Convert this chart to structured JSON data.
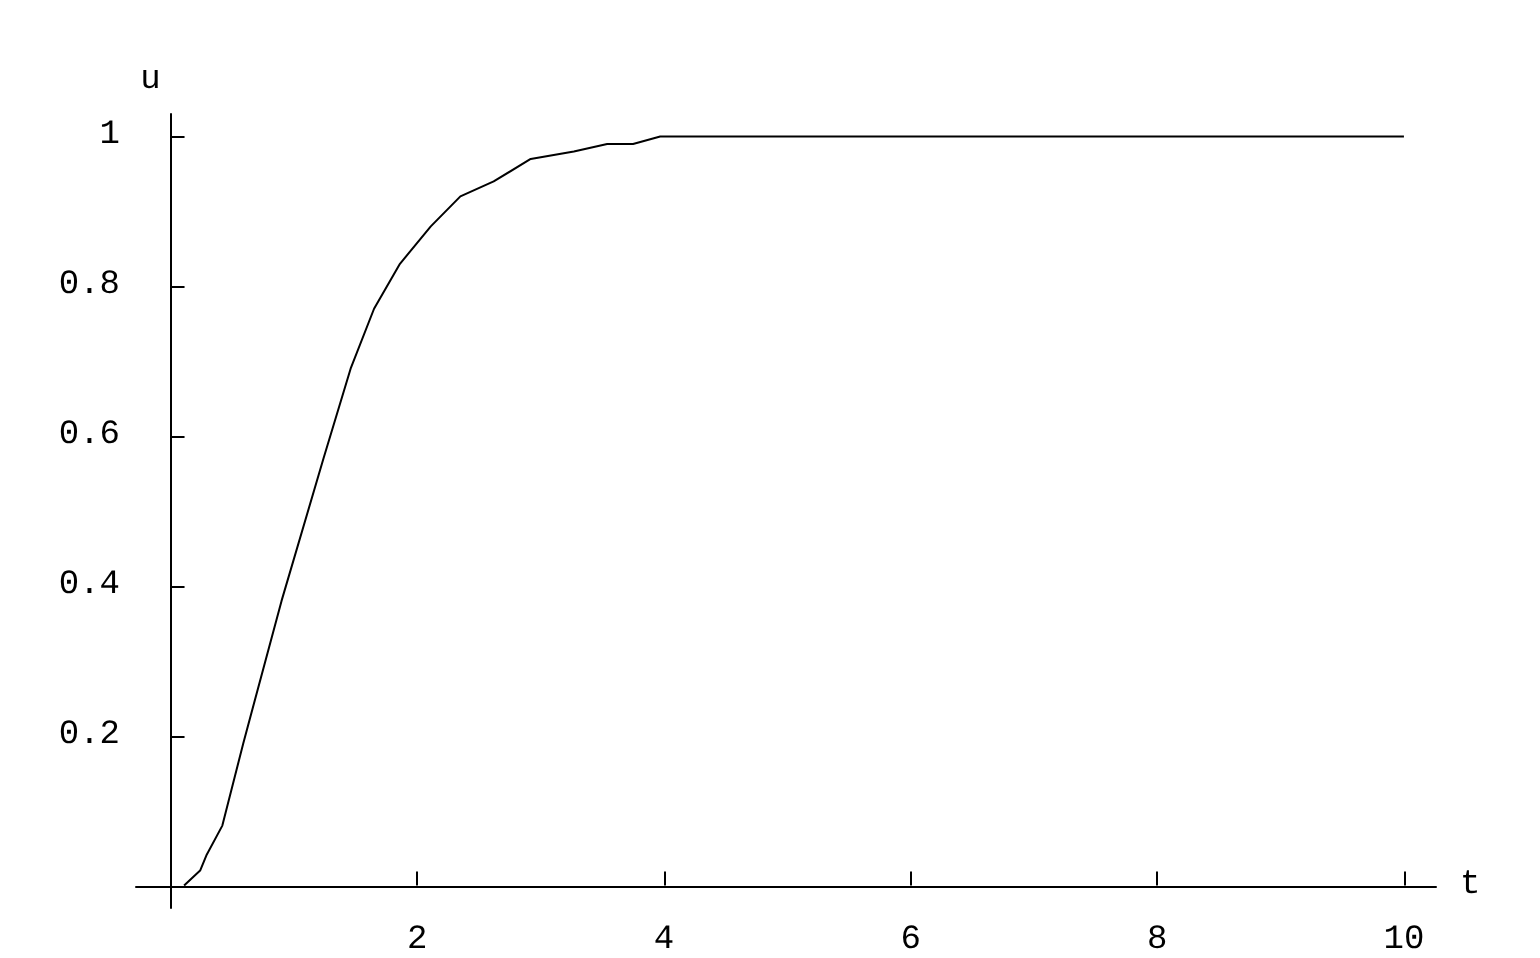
{
  "chart_data": {
    "type": "line",
    "xlabel": "t",
    "ylabel": "u",
    "x": [
      0.11,
      0.24,
      0.29,
      0.42,
      0.59,
      0.9,
      1.24,
      1.46,
      1.65,
      1.86,
      2.11,
      2.35,
      2.62,
      2.92,
      3.27,
      3.54,
      3.75,
      3.97,
      10
    ],
    "values": [
      0,
      0.02,
      0.04,
      0.08,
      0.19,
      0.38,
      0.57,
      0.69,
      0.77,
      0.83,
      0.88,
      0.92,
      0.94,
      0.97,
      0.98,
      0.99,
      0.99,
      1,
      1
    ],
    "color": "#000000",
    "xlim": [
      -0.28,
      10.26
    ],
    "ylim": [
      -0.03,
      1.03
    ],
    "xticks": [
      2,
      4,
      6,
      8,
      10
    ],
    "yticks": [
      0.2,
      0.4,
      0.6,
      0.8,
      1
    ],
    "grid": false,
    "marker": "none",
    "line_style": "solid"
  }
}
